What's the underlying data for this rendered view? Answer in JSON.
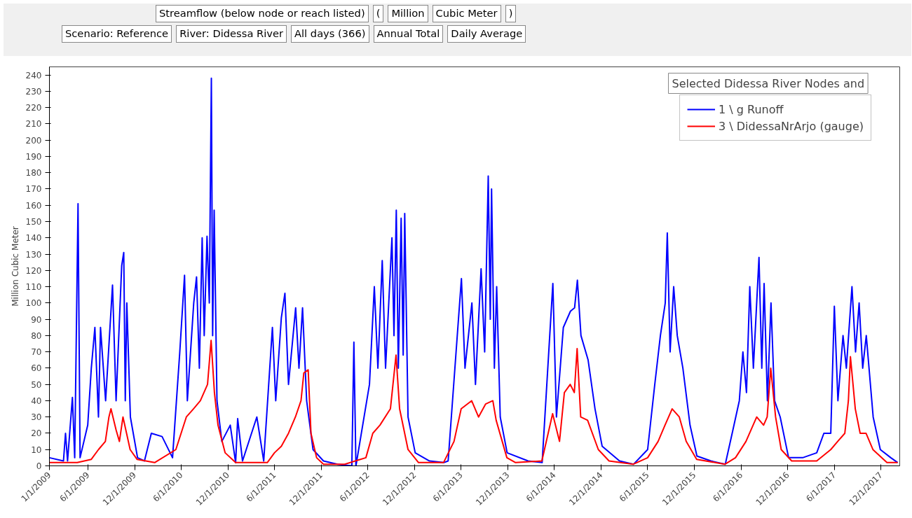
{
  "chart_data": {
    "type": "line",
    "ylabel": "Million Cubic Meter",
    "xlim": [
      "2009-01-01",
      "2018-02-12"
    ],
    "ylim": [
      0,
      245
    ],
    "yticks": [
      0,
      10,
      20,
      30,
      40,
      50,
      60,
      70,
      80,
      90,
      100,
      110,
      120,
      130,
      140,
      150,
      160,
      170,
      180,
      190,
      200,
      210,
      220,
      230,
      240
    ],
    "xticks": [
      {
        "value": "2009-01-01",
        "label": "1/1/2009"
      },
      {
        "value": "2009-06-01",
        "label": "6/1/2009"
      },
      {
        "value": "2009-12-01",
        "label": "12/1/2009"
      },
      {
        "value": "2010-06-01",
        "label": "6/1/2010"
      },
      {
        "value": "2010-12-01",
        "label": "12/1/2010"
      },
      {
        "value": "2011-06-01",
        "label": "6/1/2011"
      },
      {
        "value": "2011-12-01",
        "label": "12/1/2011"
      },
      {
        "value": "2012-06-01",
        "label": "6/1/2012"
      },
      {
        "value": "2012-12-01",
        "label": "12/1/2012"
      },
      {
        "value": "2013-06-01",
        "label": "6/1/2013"
      },
      {
        "value": "2013-12-01",
        "label": "12/1/2013"
      },
      {
        "value": "2014-06-01",
        "label": "6/1/2014"
      },
      {
        "value": "2014-12-01",
        "label": "12/1/2014"
      },
      {
        "value": "2015-06-01",
        "label": "6/1/2015"
      },
      {
        "value": "2015-12-01",
        "label": "12/1/2015"
      },
      {
        "value": "2016-06-01",
        "label": "6/1/2016"
      },
      {
        "value": "2016-12-01",
        "label": "12/1/2016"
      },
      {
        "value": "2017-06-01",
        "label": "6/1/2017"
      },
      {
        "value": "2017-12-01",
        "label": "12/1/2017"
      }
    ],
    "grid": false,
    "legend": "top right",
    "marker": "none",
    "line_style": "solid",
    "annotations": [
      "Streamflow (below node or reach listed)",
      "(",
      "Million",
      "Cubic Meter",
      ")",
      "Scenario: Reference",
      "River: Didessa River",
      "All days (366)",
      "Annual Total",
      "Daily Average",
      "Selected Didessa River Nodes and"
    ],
    "series": [
      {
        "name": "1 \\ g Runoff",
        "color": "#0000ff",
        "x": [
          "2009-01-01",
          "2009-02-25",
          "2009-03-05",
          "2009-03-13",
          "2009-04-01",
          "2009-04-10",
          "2009-04-23",
          "2009-05-01",
          "2009-05-31",
          "2009-06-14",
          "2009-06-28",
          "2009-07-12",
          "2009-07-20",
          "2009-08-09",
          "2009-09-05",
          "2009-09-19",
          "2009-10-11",
          "2009-10-19",
          "2009-10-25",
          "2009-10-31",
          "2009-11-14",
          "2009-12-12",
          "2010-01-08",
          "2010-02-04",
          "2010-03-18",
          "2010-04-28",
          "2010-05-26",
          "2010-06-14",
          "2010-06-25",
          "2010-07-20",
          "2010-07-31",
          "2010-08-11",
          "2010-08-22",
          "2010-08-30",
          "2010-09-10",
          "2010-09-19",
          "2010-09-27",
          "2010-10-02",
          "2010-10-08",
          "2010-10-19",
          "2010-11-07",
          "2010-12-10",
          "2010-12-31",
          "2011-01-08",
          "2011-01-27",
          "2011-03-24",
          "2011-04-20",
          "2011-05-24",
          "2011-06-06",
          "2011-06-28",
          "2011-07-12",
          "2011-07-26",
          "2011-08-23",
          "2011-09-05",
          "2011-09-19",
          "2011-10-05",
          "2011-10-30",
          "2011-12-10",
          "2012-02-03",
          "2012-03-30",
          "2012-04-07",
          "2012-04-15",
          "2012-06-07",
          "2012-06-26",
          "2012-07-10",
          "2012-07-27",
          "2012-08-09",
          "2012-09-03",
          "2012-09-11",
          "2012-09-20",
          "2012-09-28",
          "2012-10-09",
          "2012-10-17",
          "2012-10-23",
          "2012-11-05",
          "2012-12-03",
          "2013-01-28",
          "2013-03-25",
          "2013-04-11",
          "2013-06-02",
          "2013-06-16",
          "2013-07-13",
          "2013-07-27",
          "2013-08-18",
          "2013-09-01",
          "2013-09-15",
          "2013-09-23",
          "2013-09-28",
          "2013-10-09",
          "2013-10-18",
          "2013-11-01",
          "2013-11-28",
          "2014-02-18",
          "2014-04-14",
          "2014-05-26",
          "2014-06-09",
          "2014-07-06",
          "2014-08-03",
          "2014-08-19",
          "2014-08-30",
          "2014-09-13",
          "2014-10-11",
          "2014-11-07",
          "2014-12-05",
          "2015-02-11",
          "2015-04-07",
          "2015-06-01",
          "2015-06-29",
          "2015-07-21",
          "2015-08-09",
          "2015-08-17",
          "2015-08-28",
          "2015-09-11",
          "2015-09-25",
          "2015-10-17",
          "2015-11-14",
          "2015-12-11",
          "2016-02-04",
          "2016-03-31",
          "2016-04-27",
          "2016-05-25",
          "2016-06-08",
          "2016-06-22",
          "2016-07-05",
          "2016-07-19",
          "2016-08-10",
          "2016-08-21",
          "2016-08-30",
          "2016-09-12",
          "2016-09-26",
          "2016-10-10",
          "2016-11-01",
          "2016-12-04",
          "2017-01-28",
          "2017-03-24",
          "2017-04-21",
          "2017-05-18",
          "2017-06-01",
          "2017-06-15",
          "2017-07-05",
          "2017-07-18",
          "2017-08-09",
          "2017-08-23",
          "2017-09-06",
          "2017-09-20",
          "2017-10-04",
          "2017-10-31",
          "2017-11-28",
          "2018-01-08",
          "2018-02-04"
        ],
        "values": [
          5,
          3,
          20,
          3,
          42,
          5,
          161,
          5,
          25,
          60,
          85,
          30,
          85,
          40,
          111,
          40,
          123,
          131,
          40,
          100,
          30,
          5,
          3,
          20,
          18,
          5,
          69,
          117,
          40,
          100,
          116,
          60,
          140,
          80,
          141,
          100,
          238,
          80,
          157,
          40,
          15,
          25,
          2,
          29,
          3,
          30,
          3,
          85,
          40,
          91,
          106,
          50,
          97,
          60,
          97,
          40,
          10,
          3,
          1,
          0,
          76,
          0,
          50,
          110,
          60,
          126,
          60,
          140,
          80,
          157,
          60,
          152,
          68,
          155,
          30,
          8,
          3,
          2,
          3,
          115,
          60,
          100,
          50,
          121,
          70,
          178,
          90,
          170,
          60,
          110,
          30,
          8,
          3,
          2,
          112,
          30,
          85,
          95,
          97,
          114,
          80,
          65,
          35,
          12,
          3,
          1,
          10,
          50,
          80,
          100,
          143,
          70,
          110,
          80,
          60,
          25,
          6,
          3,
          1,
          20,
          40,
          70,
          45,
          110,
          60,
          128,
          60,
          112,
          40,
          100,
          40,
          30,
          5,
          5,
          8,
          20,
          20,
          98,
          40,
          80,
          60,
          110,
          70,
          100,
          60,
          80,
          30,
          10,
          5,
          2
        ]
      },
      {
        "name": "3 \\ DidessaNrArjo (gauge)",
        "color": "#ff0000",
        "x": [
          "2009-01-01",
          "2009-04-20",
          "2009-06-14",
          "2009-07-12",
          "2009-08-08",
          "2009-08-22",
          "2009-08-30",
          "2009-09-19",
          "2009-10-02",
          "2009-10-16",
          "2009-10-30",
          "2009-11-13",
          "2009-12-10",
          "2010-02-17",
          "2010-05-11",
          "2010-06-21",
          "2010-07-19",
          "2010-08-15",
          "2010-09-12",
          "2010-09-26",
          "2010-10-09",
          "2010-10-23",
          "2010-11-20",
          "2010-12-31",
          "2011-05-04",
          "2011-06-01",
          "2011-06-28",
          "2011-07-26",
          "2011-08-22",
          "2011-09-13",
          "2011-09-24",
          "2011-10-11",
          "2011-10-22",
          "2011-11-13",
          "2011-12-10",
          "2012-03-02",
          "2012-05-24",
          "2012-06-20",
          "2012-07-18",
          "2012-08-28",
          "2012-09-19",
          "2012-10-03",
          "2012-11-05",
          "2012-12-16",
          "2013-03-24",
          "2013-05-04",
          "2013-06-01",
          "2013-07-12",
          "2013-08-08",
          "2013-09-05",
          "2013-10-03",
          "2013-10-16",
          "2013-11-27",
          "2013-12-31",
          "2014-04-13",
          "2014-05-25",
          "2014-06-21",
          "2014-07-10",
          "2014-08-02",
          "2014-08-18",
          "2014-08-29",
          "2014-09-12",
          "2014-10-09",
          "2014-11-20",
          "2015-01-01",
          "2015-04-06",
          "2015-06-01",
          "2015-07-12",
          "2015-08-08",
          "2015-09-05",
          "2015-10-03",
          "2015-10-30",
          "2015-12-10",
          "2016-03-30",
          "2016-05-10",
          "2016-06-20",
          "2016-08-01",
          "2016-08-28",
          "2016-09-11",
          "2016-09-25",
          "2016-10-14",
          "2016-11-05",
          "2016-12-16",
          "2017-03-24",
          "2017-05-18",
          "2017-06-14",
          "2017-07-12",
          "2017-07-26",
          "2017-08-03",
          "2017-08-22",
          "2017-09-10",
          "2017-10-03",
          "2017-10-30",
          "2017-12-24",
          "2018-02-04"
        ],
        "values": [
          2,
          2,
          4,
          10,
          15,
          30,
          35,
          22,
          15,
          30,
          20,
          10,
          4,
          2,
          10,
          30,
          35,
          40,
          50,
          77,
          45,
          25,
          8,
          2,
          2,
          8,
          12,
          20,
          30,
          40,
          57,
          59,
          20,
          5,
          1,
          1,
          5,
          20,
          25,
          35,
          68,
          35,
          10,
          2,
          2,
          15,
          35,
          40,
          30,
          38,
          40,
          28,
          5,
          2,
          3,
          32,
          15,
          45,
          50,
          45,
          72,
          30,
          28,
          10,
          3,
          1,
          5,
          15,
          25,
          35,
          30,
          15,
          4,
          1,
          5,
          15,
          30,
          25,
          30,
          60,
          30,
          10,
          3,
          3,
          10,
          15,
          20,
          40,
          67,
          35,
          20,
          20,
          10,
          2,
          2
        ]
      }
    ]
  }
}
